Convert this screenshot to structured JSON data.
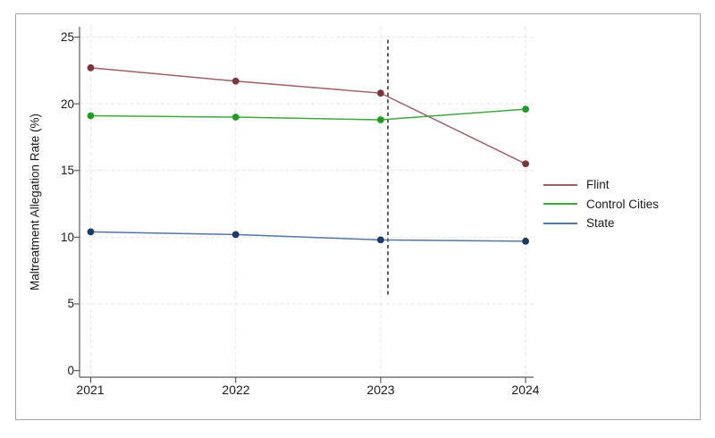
{
  "chart_data": {
    "type": "line",
    "title": "",
    "xlabel": "",
    "ylabel": "Maltreatment Allegation Rate (%)",
    "categories": [
      "2021",
      "2022",
      "2023",
      "2024"
    ],
    "yticks": [
      "0",
      "5",
      "10",
      "15",
      "20",
      "25"
    ],
    "ylim": [
      0,
      25.8
    ],
    "grid": true,
    "legend_position": "right-middle",
    "series": [
      {
        "name": "Flint",
        "values": [
          22.7,
          21.7,
          20.8,
          15.5
        ],
        "line_color": "#9d6166",
        "marker_color": "#7d353a"
      },
      {
        "name": "Control Cities",
        "values": [
          19.1,
          19.0,
          18.8,
          19.6
        ],
        "line_color": "#46a341",
        "marker_color": "#1f9c22"
      },
      {
        "name": "State",
        "values": [
          10.4,
          10.2,
          9.8,
          9.7
        ],
        "line_color": "#54779e",
        "marker_color": "#1b3a68"
      }
    ],
    "vline": {
      "x_year": 2023.05,
      "style": "dashed",
      "color": "#1a1a1a",
      "y_span_values": [
        5.5,
        24.8
      ]
    }
  },
  "colors": {
    "background": "#ffffff",
    "frame_border": "#a4a4a4",
    "gridline": "#e7e7e7",
    "axis": "#5a5a5a",
    "text": "#1a1a1a"
  }
}
